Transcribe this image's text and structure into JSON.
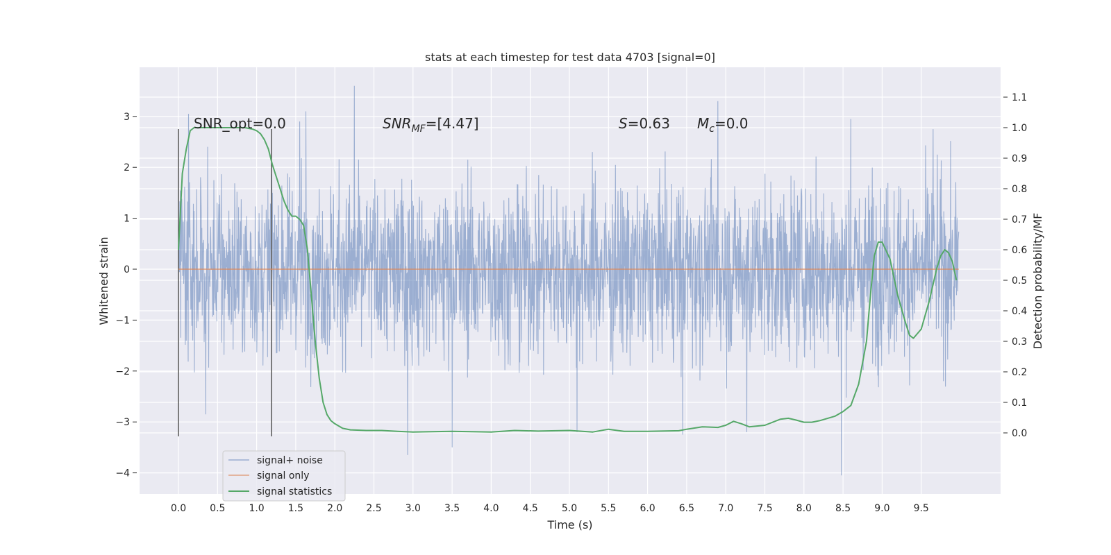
{
  "chart_data": {
    "type": "line",
    "title": "stats at each timestep for test data 4703 [signal=0]",
    "xlabel": "Time (s)",
    "ylabel_left": "Whitened strain",
    "ylabel_right": "Detection probability/MF",
    "xlim": [
      -0.5,
      10.5
    ],
    "ylim_left": [
      -4.45,
      3.95
    ],
    "ylim_right": [
      -0.198,
      1.2
    ],
    "x_ticks": [
      "0.0",
      "0.5",
      "1.0",
      "1.5",
      "2.0",
      "2.5",
      "3.0",
      "3.5",
      "4.0",
      "4.5",
      "5.0",
      "5.5",
      "6.0",
      "6.5",
      "7.0",
      "7.5",
      "8.0",
      "8.5",
      "9.0",
      "9.5"
    ],
    "y_ticks_left": [
      "3",
      "2",
      "1",
      "0",
      "−1",
      "−2",
      "−3",
      "−4"
    ],
    "y_ticks_right": [
      "1.1",
      "1.0",
      "0.9",
      "0.8",
      "0.7",
      "0.6",
      "0.5",
      "0.4",
      "0.3",
      "0.2",
      "0.1",
      "0.0"
    ],
    "grid": true,
    "legend_position": "bottom-left",
    "annotations": {
      "snr_opt": "SNR_opt=0.0",
      "snr_mf_main": "SNR",
      "snr_mf_sub": "MF",
      "snr_mf_value": "=[4.47]",
      "s_main": "S",
      "s_value": "=0.63",
      "mc_main": "M",
      "mc_sub": "c",
      "mc_value": "=0.0"
    },
    "vertical_markers_x": [
      0.0,
      1.19
    ],
    "series": [
      {
        "name": "signal+ noise",
        "color": "#4c72b0",
        "note_pattern": "dense noise between about -2 and 2, spikes to 3.6 and -4.1",
        "x_range": [
          0.0,
          9.98
        ],
        "typical_amplitude": 1.55,
        "spikes": [
          {
            "x": 0.13,
            "y": 3.05
          },
          {
            "x": 0.35,
            "y": -2.85
          },
          {
            "x": 1.2,
            "y": 1.5
          },
          {
            "x": 1.55,
            "y": 2.9
          },
          {
            "x": 1.63,
            "y": -3.25
          },
          {
            "x": 1.63,
            "y": 3.1
          },
          {
            "x": 2.25,
            "y": 3.6
          },
          {
            "x": 2.93,
            "y": -3.65
          },
          {
            "x": 3.5,
            "y": -3.5
          },
          {
            "x": 5.1,
            "y": -3.2
          },
          {
            "x": 6.45,
            "y": -3.25
          },
          {
            "x": 6.9,
            "y": 3.3
          },
          {
            "x": 7.27,
            "y": -3.2
          },
          {
            "x": 8.48,
            "y": -4.05
          },
          {
            "x": 8.6,
            "y": 2.95
          },
          {
            "x": 9.65,
            "y": 2.75
          }
        ]
      },
      {
        "name": "signal only",
        "color": "#dd8452",
        "x": [
          0.0,
          9.98
        ],
        "y": [
          0.0,
          0.0
        ]
      },
      {
        "name": "signal statistics",
        "color": "#55a868",
        "axis": "right",
        "x": [
          0.0,
          0.05,
          0.1,
          0.15,
          0.2,
          0.3,
          0.5,
          0.7,
          0.85,
          0.95,
          1.0,
          1.05,
          1.1,
          1.15,
          1.2,
          1.3,
          1.35,
          1.4,
          1.45,
          1.5,
          1.55,
          1.6,
          1.65,
          1.7,
          1.75,
          1.8,
          1.85,
          1.9,
          1.95,
          2.0,
          2.1,
          2.2,
          2.4,
          2.6,
          2.8,
          3.0,
          3.5,
          4.0,
          4.3,
          4.6,
          5.0,
          5.3,
          5.5,
          5.7,
          6.0,
          6.4,
          6.5,
          6.7,
          6.9,
          7.0,
          7.1,
          7.2,
          7.3,
          7.5,
          7.7,
          7.8,
          7.9,
          8.0,
          8.1,
          8.2,
          8.4,
          8.5,
          8.6,
          8.7,
          8.8,
          8.85,
          8.9,
          8.95,
          9.0,
          9.1,
          9.2,
          9.3,
          9.35,
          9.4,
          9.5,
          9.6,
          9.7,
          9.75,
          9.8,
          9.85,
          9.9,
          9.95
        ],
        "y": [
          0.6,
          0.85,
          0.93,
          0.99,
          1.0,
          1.0,
          1.0,
          1.0,
          1.0,
          0.995,
          0.99,
          0.98,
          0.96,
          0.93,
          0.88,
          0.8,
          0.76,
          0.73,
          0.71,
          0.71,
          0.7,
          0.68,
          0.6,
          0.45,
          0.3,
          0.18,
          0.1,
          0.06,
          0.04,
          0.03,
          0.015,
          0.01,
          0.008,
          0.008,
          0.005,
          0.003,
          0.005,
          0.003,
          0.008,
          0.006,
          0.008,
          0.003,
          0.012,
          0.005,
          0.005,
          0.007,
          0.012,
          0.02,
          0.018,
          0.025,
          0.038,
          0.03,
          0.02,
          0.025,
          0.045,
          0.048,
          0.042,
          0.035,
          0.035,
          0.04,
          0.055,
          0.07,
          0.09,
          0.16,
          0.3,
          0.45,
          0.58,
          0.625,
          0.625,
          0.57,
          0.45,
          0.36,
          0.32,
          0.31,
          0.34,
          0.43,
          0.54,
          0.58,
          0.6,
          0.59,
          0.56,
          0.5
        ]
      }
    ]
  }
}
